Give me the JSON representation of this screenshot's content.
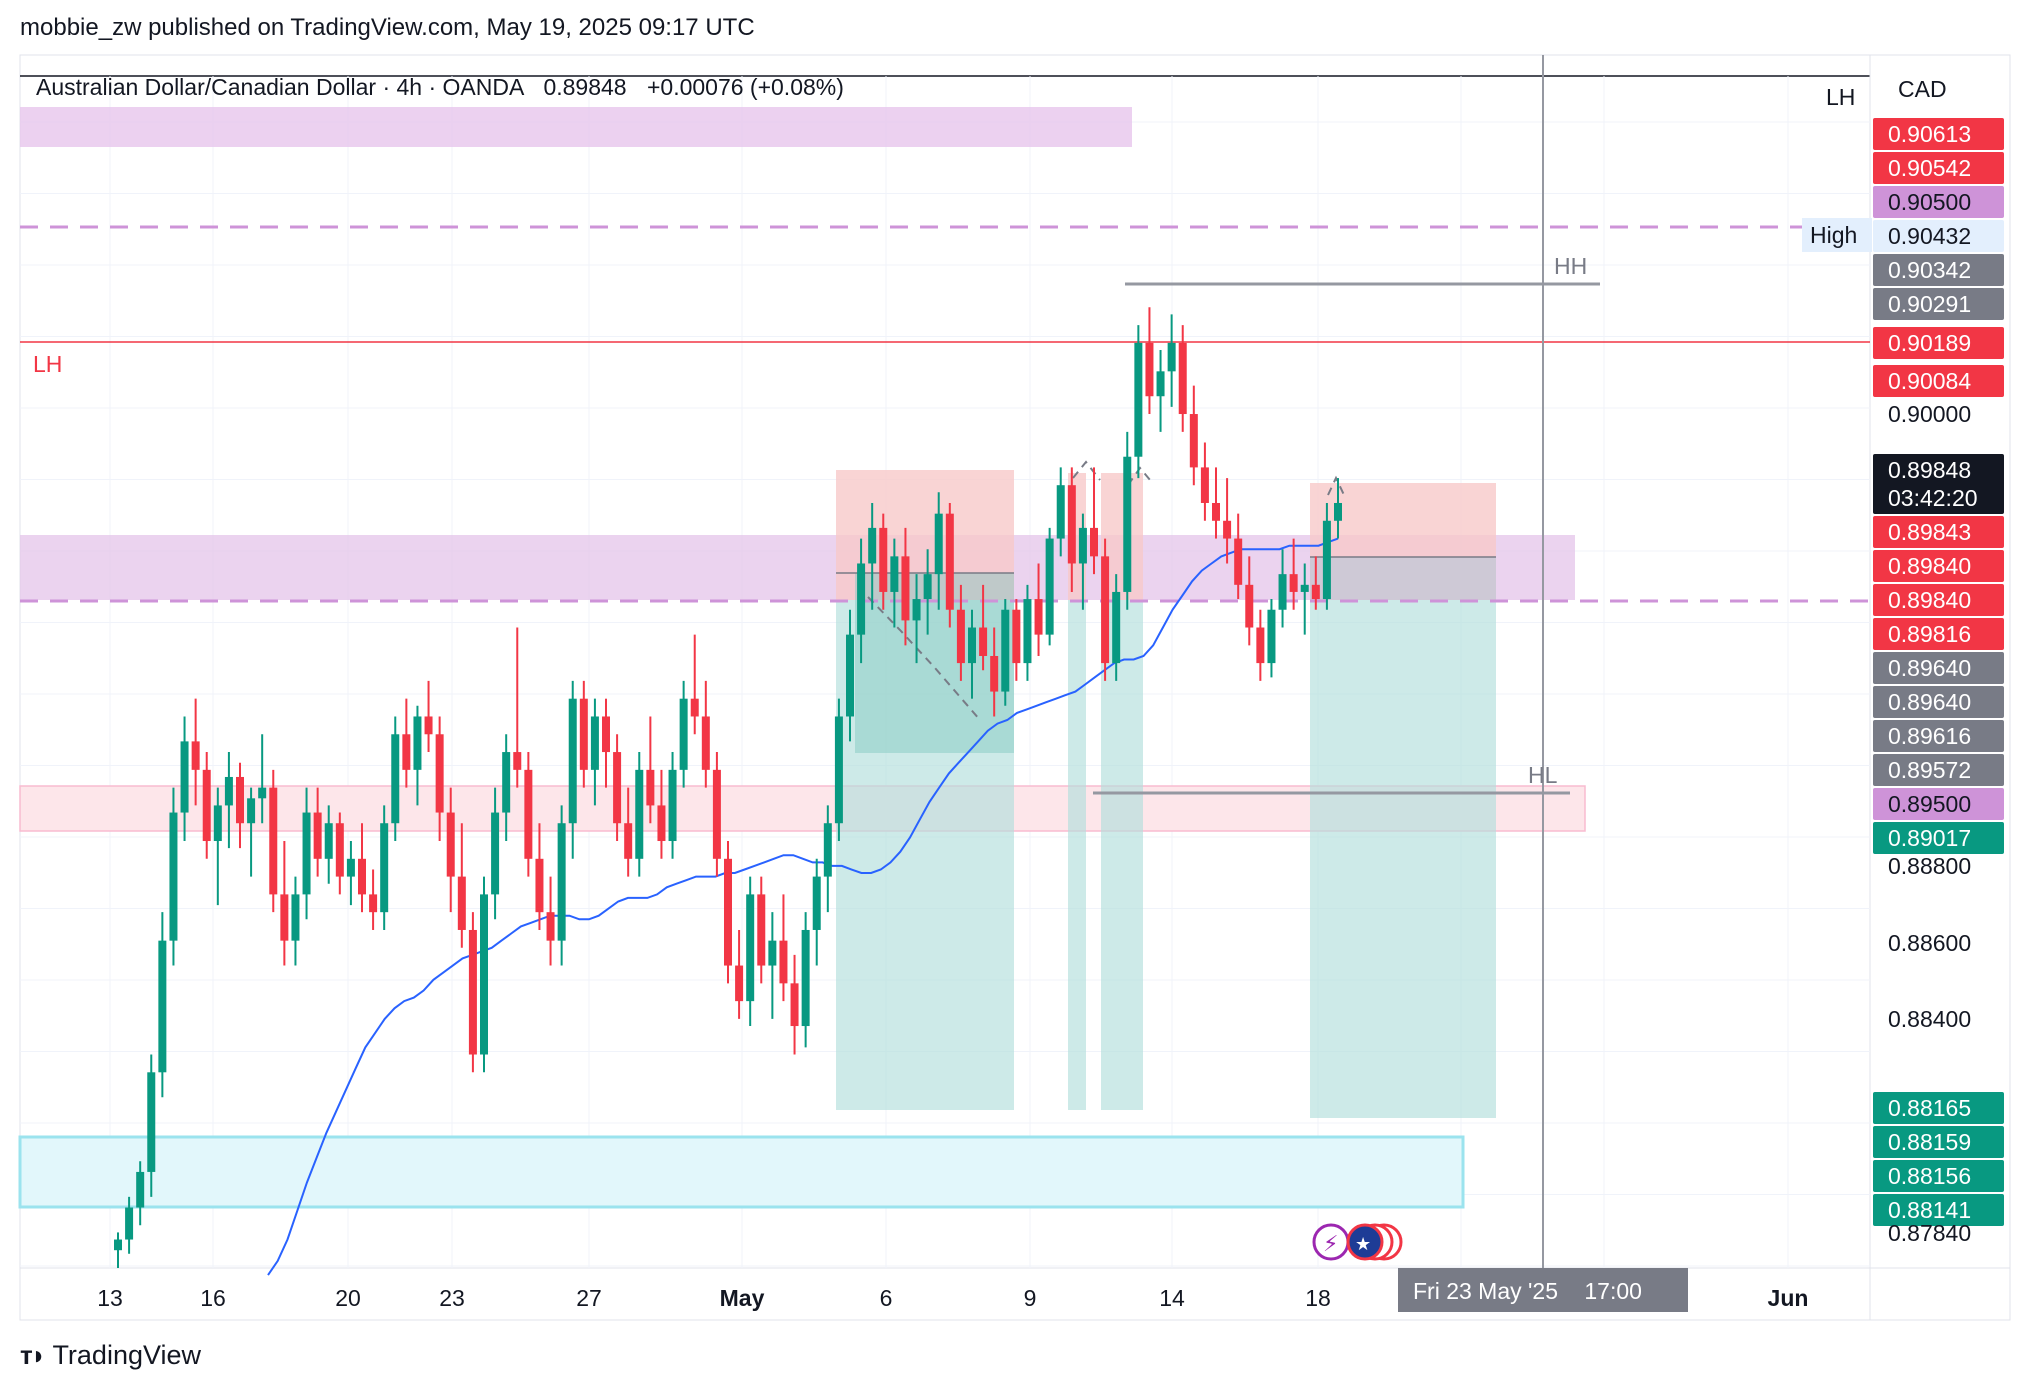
{
  "header": {
    "published": "mobbie_zw published on TradingView.com, May 19, 2025 09:17 UTC"
  },
  "legend": {
    "symbol": "Australian Dollar/Canadian Dollar · 4h · OANDA",
    "last": "0.89848",
    "change": "+0.00076 (+0.08%)"
  },
  "currency": "CAD",
  "colors": {
    "up": "#089981",
    "down": "#f23645",
    "ma": "#2962ff",
    "zone_purple": "#e1bee7",
    "zone_pink": "#fce4ec",
    "zone_cyan": "#d7f5fb",
    "stop": "#f8c9c9",
    "target": "#b2dfdb"
  },
  "annotations": {
    "lh_top": "LH",
    "lh_left": "LH",
    "hh": "HH",
    "hl": "HL",
    "high": "High"
  },
  "footer": {
    "brand": "TradingView"
  },
  "crosshair": {
    "date_label": "Fri 23 May '25",
    "time_label": "17:00"
  },
  "chart_data": {
    "type": "candlestick",
    "title": "Australian Dollar/Canadian Dollar · 4h · OANDA",
    "ylim": [
      0.877,
      0.9105
    ],
    "y_ticks": [
      "0.90000",
      "0.88800",
      "0.88600",
      "0.88400",
      "0.87840"
    ],
    "x_ticks": [
      {
        "label": "13",
        "bold": false
      },
      {
        "label": "16",
        "bold": false
      },
      {
        "label": "20",
        "bold": false
      },
      {
        "label": "23",
        "bold": false
      },
      {
        "label": "27",
        "bold": false
      },
      {
        "label": "May",
        "bold": true
      },
      {
        "label": "6",
        "bold": false
      },
      {
        "label": "9",
        "bold": false
      },
      {
        "label": "14",
        "bold": false
      },
      {
        "label": "18",
        "bold": false
      },
      {
        "label": "Jun",
        "bold": true
      }
    ],
    "price_tags": [
      {
        "value": "0.90613",
        "color": "#f23645"
      },
      {
        "value": "0.90542",
        "color": "#f23645"
      },
      {
        "value": "0.90500",
        "color": "#ce93d8",
        "text": "#131722"
      },
      {
        "value": "0.90432",
        "color": "#e3effd",
        "text": "#131722"
      },
      {
        "value": "0.90342",
        "color": "#787b86"
      },
      {
        "value": "0.90291",
        "color": "#787b86"
      },
      {
        "value": "0.90189",
        "color": "#f23645"
      },
      {
        "value": "0.90084",
        "color": "#f23645"
      },
      {
        "value": "0.89848",
        "color": "#131722"
      },
      {
        "value": "03:42:20",
        "color": "#131722"
      },
      {
        "value": "0.89843",
        "color": "#f23645"
      },
      {
        "value": "0.89840",
        "color": "#f23645"
      },
      {
        "value": "0.89840",
        "color": "#f23645"
      },
      {
        "value": "0.89816",
        "color": "#f23645"
      },
      {
        "value": "0.89640",
        "color": "#787b86"
      },
      {
        "value": "0.89640",
        "color": "#787b86"
      },
      {
        "value": "0.89616",
        "color": "#787b86"
      },
      {
        "value": "0.89572",
        "color": "#787b86"
      },
      {
        "value": "0.89500",
        "color": "#ce93d8",
        "text": "#131722"
      },
      {
        "value": "0.89017",
        "color": "#089981"
      },
      {
        "value": "0.88165",
        "color": "#089981"
      },
      {
        "value": "0.88159",
        "color": "#089981"
      },
      {
        "value": "0.88156",
        "color": "#089981"
      },
      {
        "value": "0.88141",
        "color": "#089981"
      }
    ],
    "series": [
      {
        "kind": "ohlc",
        "candles": [
          [
            0.8775,
            0.878,
            0.877,
            0.8778
          ],
          [
            0.8778,
            0.879,
            0.8774,
            0.8787
          ],
          [
            0.8787,
            0.88,
            0.8782,
            0.8797
          ],
          [
            0.8797,
            0.883,
            0.879,
            0.8825
          ],
          [
            0.8825,
            0.887,
            0.8818,
            0.8862
          ],
          [
            0.8862,
            0.8905,
            0.8855,
            0.8898
          ],
          [
            0.8898,
            0.8925,
            0.889,
            0.8918
          ],
          [
            0.8918,
            0.893,
            0.89,
            0.891
          ],
          [
            0.891,
            0.8915,
            0.8885,
            0.889
          ],
          [
            0.889,
            0.8905,
            0.8872,
            0.89
          ],
          [
            0.89,
            0.8915,
            0.8888,
            0.8908
          ],
          [
            0.8908,
            0.8912,
            0.8888,
            0.8895
          ],
          [
            0.8895,
            0.8905,
            0.888,
            0.8902
          ],
          [
            0.8902,
            0.892,
            0.8895,
            0.8905
          ],
          [
            0.8905,
            0.891,
            0.887,
            0.8875
          ],
          [
            0.8875,
            0.889,
            0.8855,
            0.8862
          ],
          [
            0.8862,
            0.888,
            0.8855,
            0.8875
          ],
          [
            0.8875,
            0.8905,
            0.8868,
            0.8898
          ],
          [
            0.8898,
            0.8905,
            0.888,
            0.8885
          ],
          [
            0.8885,
            0.89,
            0.8878,
            0.8895
          ],
          [
            0.8895,
            0.8898,
            0.8875,
            0.888
          ],
          [
            0.888,
            0.889,
            0.8872,
            0.8885
          ],
          [
            0.8885,
            0.8895,
            0.887,
            0.8875
          ],
          [
            0.8875,
            0.8882,
            0.8865,
            0.887
          ],
          [
            0.887,
            0.89,
            0.8865,
            0.8895
          ],
          [
            0.8895,
            0.8925,
            0.889,
            0.892
          ],
          [
            0.892,
            0.893,
            0.8905,
            0.891
          ],
          [
            0.891,
            0.8928,
            0.89,
            0.8925
          ],
          [
            0.8925,
            0.8935,
            0.8915,
            0.892
          ],
          [
            0.892,
            0.8925,
            0.889,
            0.8898
          ],
          [
            0.8898,
            0.8905,
            0.887,
            0.888
          ],
          [
            0.888,
            0.8895,
            0.886,
            0.8865
          ],
          [
            0.8865,
            0.887,
            0.8825,
            0.883
          ],
          [
            0.883,
            0.888,
            0.8825,
            0.8875
          ],
          [
            0.8875,
            0.8905,
            0.8868,
            0.8898
          ],
          [
            0.8898,
            0.892,
            0.889,
            0.8915
          ],
          [
            0.8915,
            0.895,
            0.8905,
            0.891
          ],
          [
            0.891,
            0.8915,
            0.888,
            0.8885
          ],
          [
            0.8885,
            0.8895,
            0.8865,
            0.887
          ],
          [
            0.887,
            0.888,
            0.8855,
            0.8862
          ],
          [
            0.8862,
            0.89,
            0.8855,
            0.8895
          ],
          [
            0.8895,
            0.8935,
            0.8885,
            0.893
          ],
          [
            0.893,
            0.8935,
            0.8905,
            0.891
          ],
          [
            0.891,
            0.893,
            0.89,
            0.8925
          ],
          [
            0.8925,
            0.893,
            0.8905,
            0.8915
          ],
          [
            0.8915,
            0.892,
            0.889,
            0.8895
          ],
          [
            0.8895,
            0.8905,
            0.888,
            0.8885
          ],
          [
            0.8885,
            0.8915,
            0.888,
            0.891
          ],
          [
            0.891,
            0.8925,
            0.8895,
            0.89
          ],
          [
            0.89,
            0.891,
            0.8885,
            0.889
          ],
          [
            0.889,
            0.8915,
            0.8885,
            0.891
          ],
          [
            0.891,
            0.8935,
            0.8905,
            0.893
          ],
          [
            0.893,
            0.8948,
            0.892,
            0.8925
          ],
          [
            0.8925,
            0.8935,
            0.8905,
            0.891
          ],
          [
            0.891,
            0.8915,
            0.888,
            0.8885
          ],
          [
            0.8885,
            0.889,
            0.885,
            0.8855
          ],
          [
            0.8855,
            0.8865,
            0.884,
            0.8845
          ],
          [
            0.8845,
            0.888,
            0.8838,
            0.8875
          ],
          [
            0.8875,
            0.888,
            0.885,
            0.8855
          ],
          [
            0.8855,
            0.887,
            0.884,
            0.8862
          ],
          [
            0.8862,
            0.8875,
            0.8845,
            0.885
          ],
          [
            0.885,
            0.8858,
            0.883,
            0.8838
          ],
          [
            0.8838,
            0.887,
            0.8832,
            0.8865
          ],
          [
            0.8865,
            0.8885,
            0.8855,
            0.888
          ],
          [
            0.888,
            0.89,
            0.887,
            0.8895
          ],
          [
            0.8895,
            0.893,
            0.889,
            0.8925
          ],
          [
            0.8925,
            0.8955,
            0.8918,
            0.8948
          ],
          [
            0.8948,
            0.8975,
            0.894,
            0.8968
          ],
          [
            0.8968,
            0.8985,
            0.8955,
            0.8978
          ],
          [
            0.8978,
            0.8982,
            0.8955,
            0.896
          ],
          [
            0.896,
            0.8975,
            0.895,
            0.897
          ],
          [
            0.897,
            0.8978,
            0.8945,
            0.8952
          ],
          [
            0.8952,
            0.8965,
            0.894,
            0.8958
          ],
          [
            0.8958,
            0.8972,
            0.8948,
            0.8965
          ],
          [
            0.8965,
            0.8988,
            0.8955,
            0.8982
          ],
          [
            0.8982,
            0.8985,
            0.895,
            0.8955
          ],
          [
            0.8955,
            0.8962,
            0.8935,
            0.894
          ],
          [
            0.894,
            0.8955,
            0.893,
            0.895
          ],
          [
            0.895,
            0.8962,
            0.8938,
            0.8942
          ],
          [
            0.8942,
            0.895,
            0.8925,
            0.8932
          ],
          [
            0.8932,
            0.8958,
            0.8928,
            0.8955
          ],
          [
            0.8955,
            0.8958,
            0.8935,
            0.894
          ],
          [
            0.894,
            0.8962,
            0.8935,
            0.8958
          ],
          [
            0.8958,
            0.8968,
            0.8942,
            0.8948
          ],
          [
            0.8948,
            0.8978,
            0.8945,
            0.8975
          ],
          [
            0.8975,
            0.8995,
            0.897,
            0.899
          ],
          [
            0.899,
            0.8995,
            0.896,
            0.8968
          ],
          [
            0.8968,
            0.8982,
            0.8955,
            0.8978
          ],
          [
            0.8978,
            0.8995,
            0.8965,
            0.897
          ],
          [
            0.897,
            0.8975,
            0.8935,
            0.894
          ],
          [
            0.894,
            0.8965,
            0.8935,
            0.896
          ],
          [
            0.896,
            0.9005,
            0.8955,
            0.8998
          ],
          [
            0.8998,
            0.9035,
            0.8992,
            0.903
          ],
          [
            0.903,
            0.904,
            0.901,
            0.9015
          ],
          [
            0.9015,
            0.9028,
            0.9005,
            0.9022
          ],
          [
            0.9022,
            0.9038,
            0.9012,
            0.903
          ],
          [
            0.903,
            0.9035,
            0.9005,
            0.901
          ],
          [
            0.901,
            0.9018,
            0.899,
            0.8995
          ],
          [
            0.8995,
            0.9002,
            0.898,
            0.8985
          ],
          [
            0.8985,
            0.8995,
            0.8975,
            0.898
          ],
          [
            0.898,
            0.8992,
            0.8968,
            0.8975
          ],
          [
            0.8975,
            0.8982,
            0.8958,
            0.8962
          ],
          [
            0.8962,
            0.897,
            0.8945,
            0.895
          ],
          [
            0.895,
            0.8955,
            0.8935,
            0.894
          ],
          [
            0.894,
            0.8958,
            0.8936,
            0.8955
          ],
          [
            0.8955,
            0.8972,
            0.895,
            0.8965
          ],
          [
            0.8965,
            0.8975,
            0.8955,
            0.896
          ],
          [
            0.896,
            0.8968,
            0.8948,
            0.8962
          ],
          [
            0.8962,
            0.897,
            0.8955,
            0.8958
          ],
          [
            0.8958,
            0.8985,
            0.8955,
            0.898
          ],
          [
            0.898,
            0.8992,
            0.8975,
            0.8985
          ]
        ]
      },
      {
        "kind": "moving_average",
        "values": [
          0.8768,
          0.8772,
          0.8778,
          0.8786,
          0.8794,
          0.8801,
          0.8808,
          0.8814,
          0.882,
          0.8826,
          0.8832,
          0.8836,
          0.884,
          0.8843,
          0.8845,
          0.8846,
          0.8848,
          0.8851,
          0.8853,
          0.8855,
          0.8857,
          0.8858,
          0.8859,
          0.886,
          0.8862,
          0.8864,
          0.8866,
          0.8867,
          0.8868,
          0.8869,
          0.8869,
          0.8869,
          0.8868,
          0.8868,
          0.8869,
          0.8871,
          0.8873,
          0.8874,
          0.8874,
          0.8874,
          0.8875,
          0.8877,
          0.8878,
          0.8879,
          0.888,
          0.888,
          0.888,
          0.8881,
          0.8881,
          0.8882,
          0.8883,
          0.8884,
          0.8885,
          0.8886,
          0.8886,
          0.8885,
          0.8884,
          0.8884,
          0.8883,
          0.8883,
          0.8882,
          0.8881,
          0.8881,
          0.8882,
          0.8884,
          0.8887,
          0.8891,
          0.8896,
          0.8901,
          0.8905,
          0.8909,
          0.8912,
          0.8915,
          0.8918,
          0.8921,
          0.8923,
          0.8924,
          0.8926,
          0.8927,
          0.8928,
          0.8929,
          0.893,
          0.8931,
          0.8932,
          0.8934,
          0.8936,
          0.8938,
          0.894,
          0.8941,
          0.8941,
          0.8942,
          0.8945,
          0.895,
          0.8955,
          0.8959,
          0.8963,
          0.8966,
          0.8968,
          0.897,
          0.8971,
          0.8972,
          0.8972,
          0.8972,
          0.8972,
          0.8972,
          0.8973,
          0.8973,
          0.8973,
          0.8973,
          0.8974,
          0.8975
        ]
      }
    ]
  }
}
